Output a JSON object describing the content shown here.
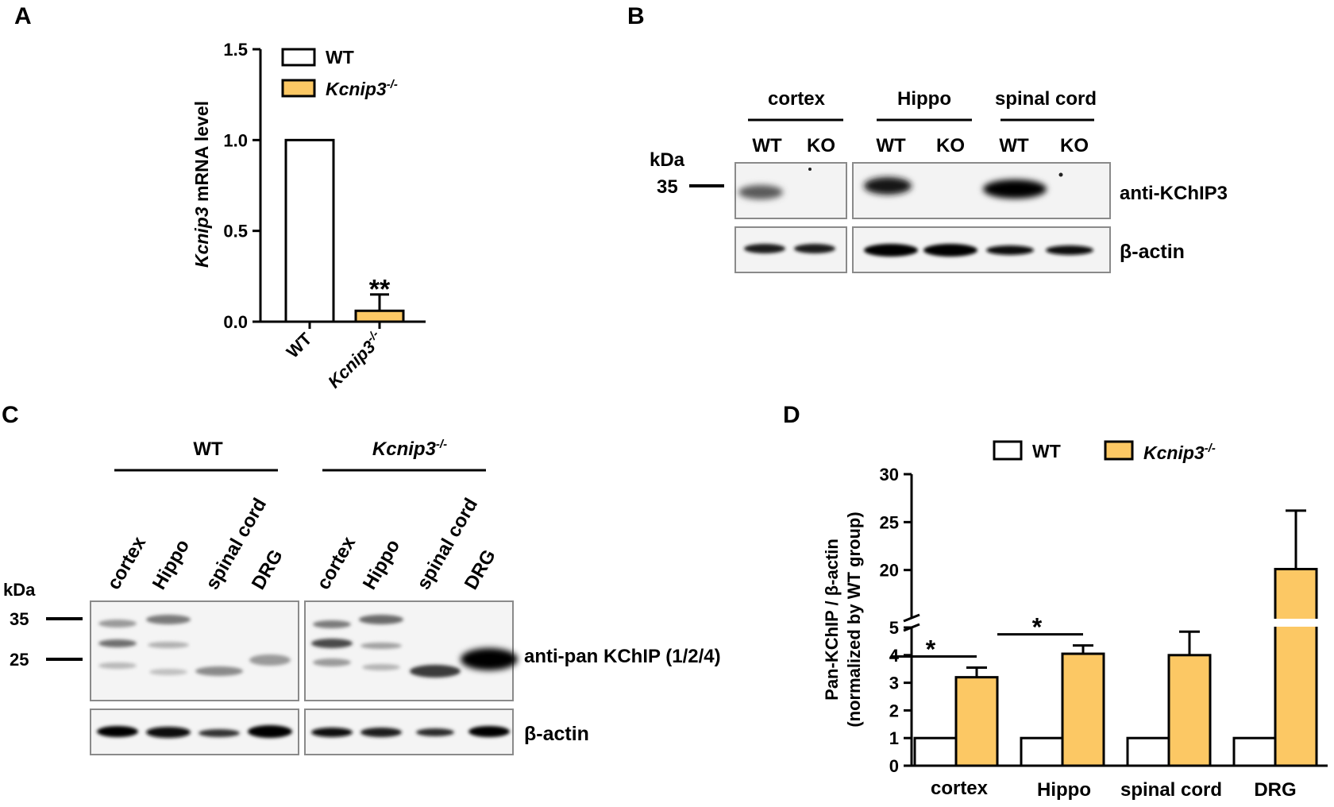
{
  "panels": {
    "A": {
      "label": "A",
      "chart_data": {
        "type": "bar",
        "categories": [
          "WT",
          "Kcnip3-/-"
        ],
        "series": [
          {
            "name": "WT",
            "values": [
              1.0,
              null
            ]
          },
          {
            "name": "Kcnip3-/-",
            "values": [
              null,
              0.06
            ]
          }
        ],
        "errors": [
          null,
          0.09
        ],
        "ylim": [
          0,
          1.5
        ],
        "yticks": [
          "0.0",
          "0.5",
          "1.0",
          "1.5"
        ],
        "ylabel_italic": "Kcnip3",
        "ylabel_rest": " mRNA level",
        "significance": "**",
        "legend_position": "top-right",
        "colors": {
          "WT": "#ffffff",
          "KO": "#fcc864"
        }
      }
    },
    "B": {
      "label": "B",
      "groups": [
        "cortex",
        "Hippo",
        "spinal cord"
      ],
      "lanes": [
        "WT",
        "KO",
        "WT",
        "KO",
        "WT",
        "KO"
      ],
      "kda_title": "kDa",
      "marker": "35",
      "bands": [
        "anti-KChIP3",
        "β-actin"
      ]
    },
    "C": {
      "label": "C",
      "group_wt": "WT",
      "group_ko_base": "Kcnip3",
      "group_ko_sup": "-/-",
      "lanes": [
        "cortex",
        "Hippo",
        "spinal cord",
        "DRG",
        "cortex",
        "Hippo",
        "spinal cord",
        "DRG"
      ],
      "kda_title": "kDa",
      "markers": [
        "35",
        "25"
      ],
      "bands": [
        "anti-pan KChIP (1/2/4)",
        "β-actin"
      ]
    },
    "D": {
      "label": "D",
      "chart_data": {
        "type": "bar",
        "categories": [
          "cortex",
          "Hippo",
          "spinal cord",
          "DRG"
        ],
        "series": [
          {
            "name": "WT",
            "values": [
              1,
              1,
              1,
              1
            ]
          },
          {
            "name": "Kcnip3-/-",
            "values": [
              3.2,
              4.05,
              4.0,
              20.1
            ],
            "errors": [
              0.35,
              0.3,
              0.85,
              6.1
            ]
          }
        ],
        "y_break": [
          5,
          15
        ],
        "ylim": [
          0,
          30
        ],
        "yticks_lower": [
          "0",
          "1",
          "2",
          "3",
          "4",
          "5"
        ],
        "yticks_upper": [
          "20",
          "25",
          "30"
        ],
        "ylabel_line1": "Pan-KChIP / β-actin",
        "ylabel_line2": "(normalized by WT group)",
        "significance": [
          "*",
          "*",
          "",
          ""
        ],
        "legend_position": "top",
        "colors": {
          "WT": "#ffffff",
          "KO": "#fcc864"
        }
      }
    }
  },
  "legend": {
    "wt": "WT",
    "ko_base": "Kcnip3",
    "ko_sup": "-/-"
  }
}
